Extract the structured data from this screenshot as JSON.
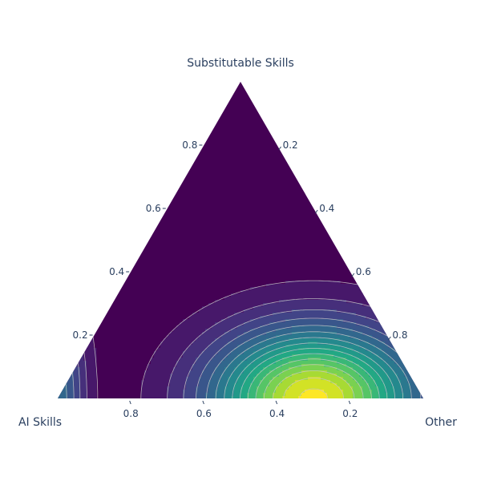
{
  "chart_data": {
    "type": "ternary-contour",
    "axes": {
      "a": {
        "title": "Substitutable Skills",
        "ticks": [
          0.2,
          0.4,
          0.6,
          0.8
        ],
        "tick_labels": [
          "0.2",
          "0.4",
          "0.6",
          "0.8"
        ]
      },
      "b": {
        "title": "AI Skills",
        "ticks": [
          0.2,
          0.4,
          0.6,
          0.8
        ],
        "tick_labels": [
          "0.2",
          "0.4",
          "0.6",
          "0.8"
        ]
      },
      "c": {
        "title": "Other",
        "ticks": [
          0.2,
          0.4,
          0.6,
          0.8
        ],
        "tick_labels": [
          "0.2",
          "0.4",
          "0.6",
          "0.8"
        ]
      }
    },
    "colorscale": "viridis",
    "levels": 15,
    "density_peaks": [
      {
        "a": 0.0,
        "b": 0.3,
        "c": 0.7,
        "weight": 1.0
      },
      {
        "a": 0.0,
        "b": 1.0,
        "c": 0.0,
        "weight": 0.35
      }
    ],
    "background_color": "#440154"
  }
}
